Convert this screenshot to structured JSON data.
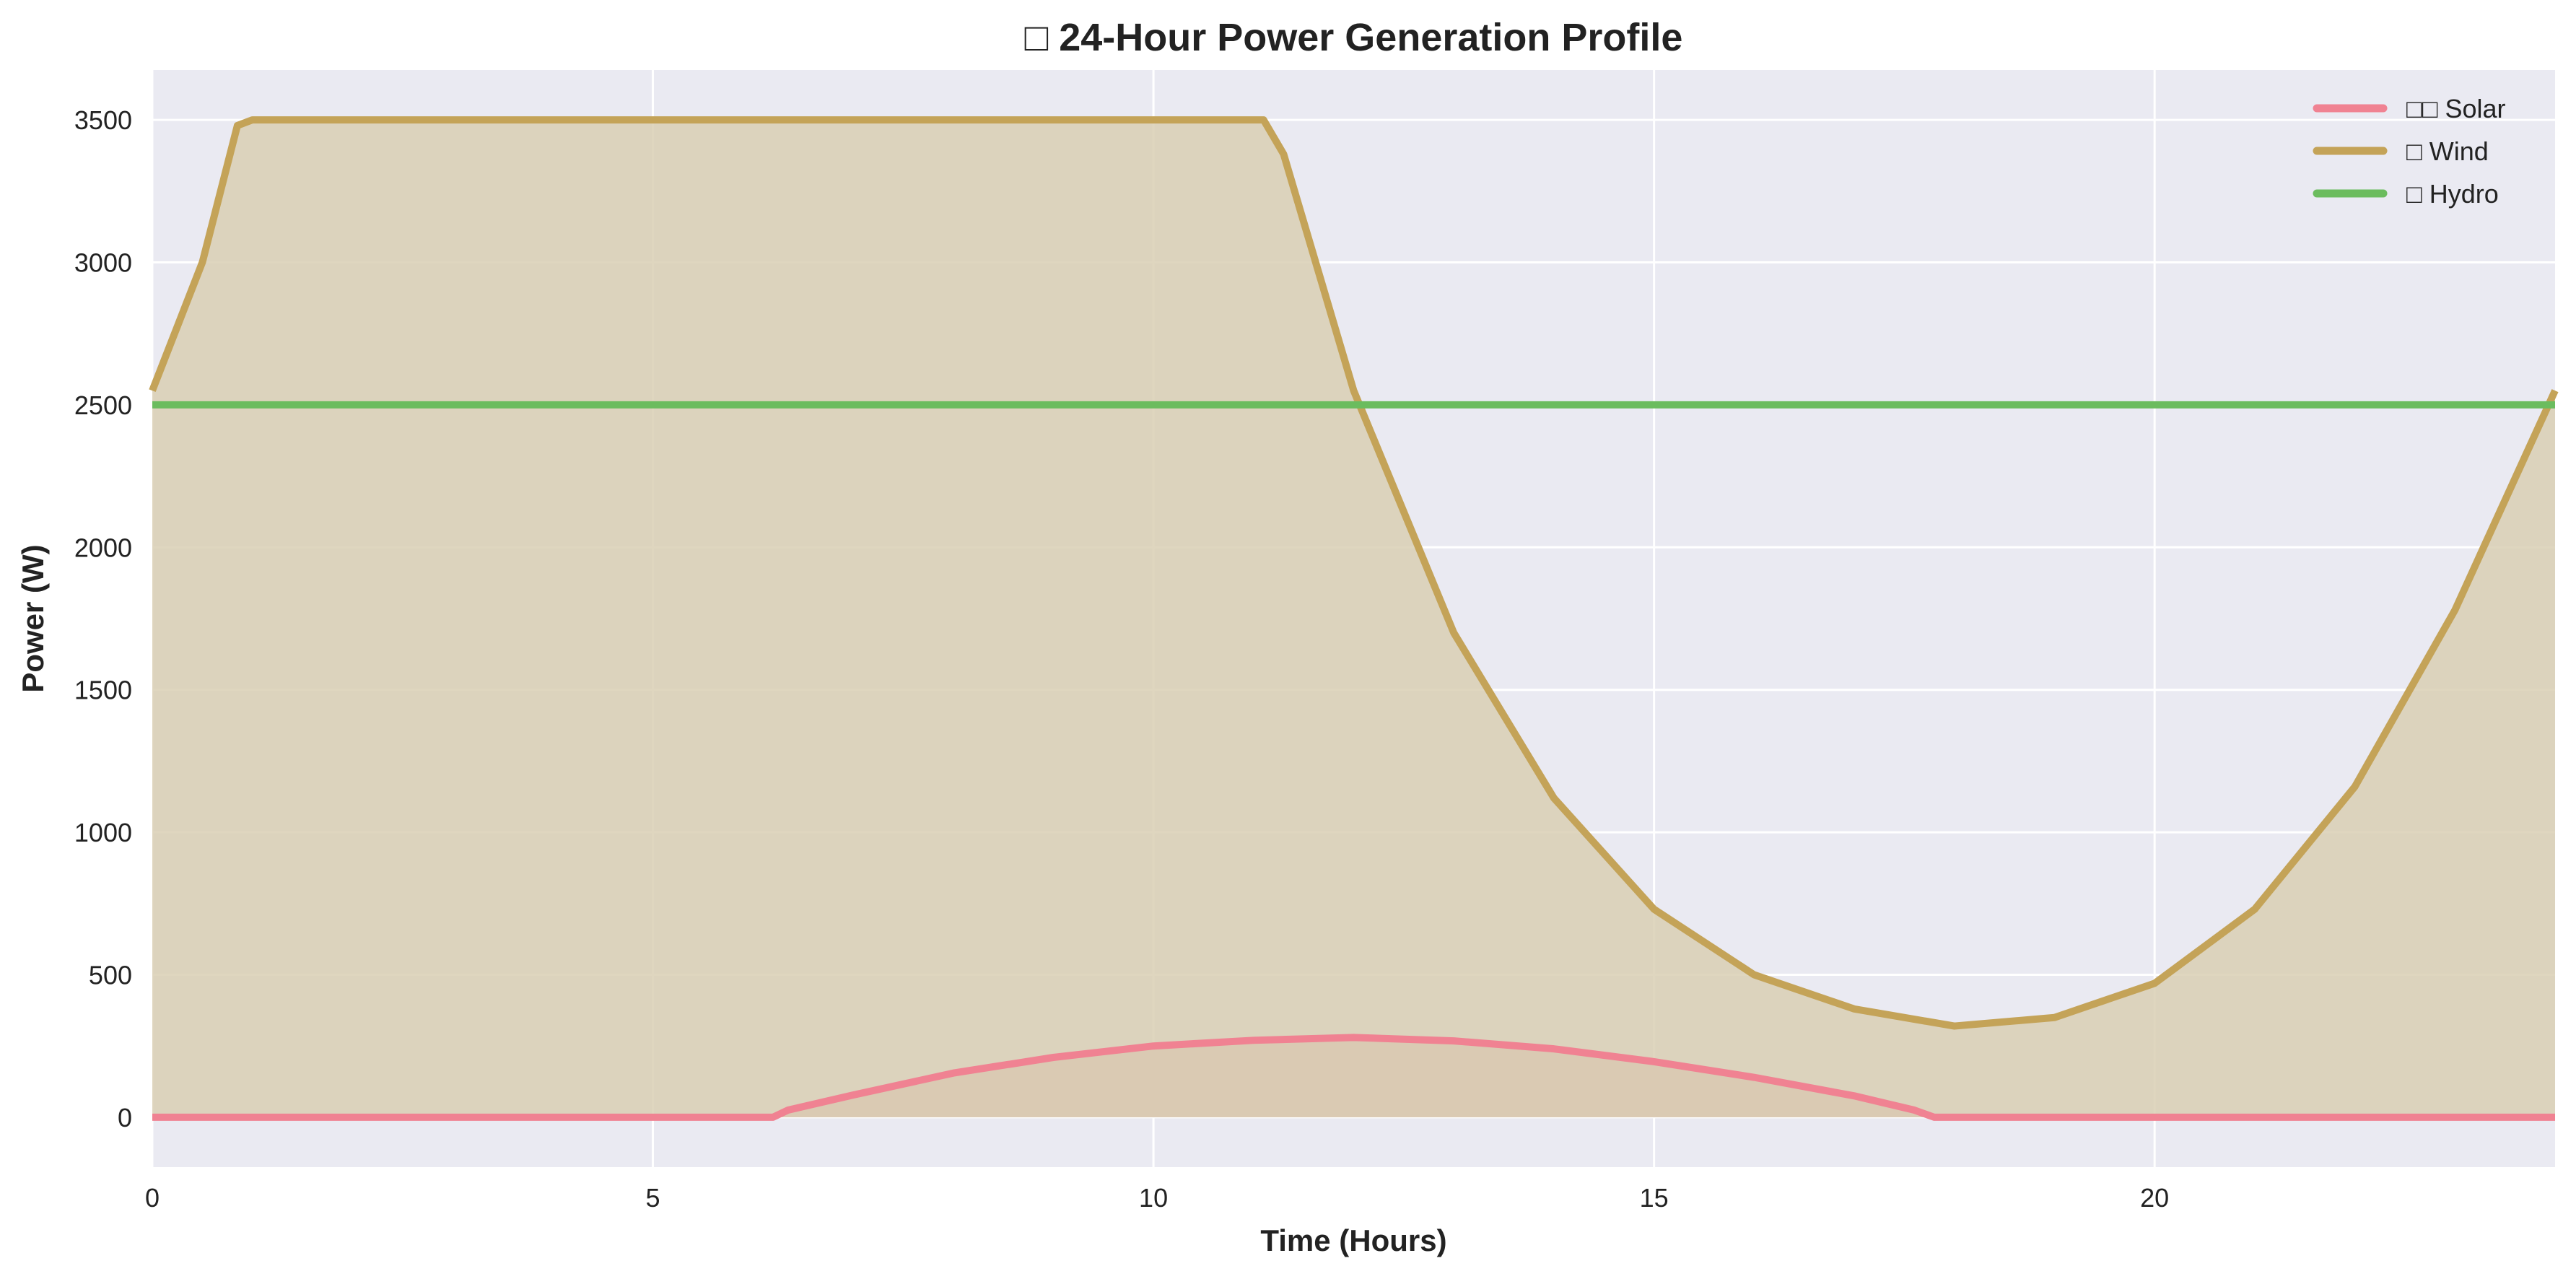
{
  "chart_data": {
    "type": "line",
    "title": "□ 24-Hour Power Generation Profile",
    "xlabel": "Time (Hours)",
    "ylabel": "Power (W)",
    "xlim": [
      0,
      24
    ],
    "ylim": [
      -175,
      3675
    ],
    "xticks": [
      0,
      5,
      10,
      15,
      20
    ],
    "yticks": [
      0,
      500,
      1000,
      1500,
      2000,
      2500,
      3000,
      3500
    ],
    "grid": true,
    "legend_position": "top-right",
    "filled": true,
    "series": [
      {
        "name": "□□ Solar",
        "color": "#f08292",
        "fill": "#d9a3a0",
        "points": [
          [
            0,
            0
          ],
          [
            6.2,
            0
          ],
          [
            6.35,
            25
          ],
          [
            7,
            78
          ],
          [
            8,
            155
          ],
          [
            9,
            210
          ],
          [
            10,
            250
          ],
          [
            11,
            270
          ],
          [
            12,
            280
          ],
          [
            13,
            268
          ],
          [
            14,
            240
          ],
          [
            15,
            195
          ],
          [
            16,
            140
          ],
          [
            17,
            75
          ],
          [
            17.6,
            25
          ],
          [
            17.8,
            0
          ],
          [
            24,
            0
          ]
        ]
      },
      {
        "name": "□ Wind",
        "color": "#c4a358",
        "fill": "#d9cfb4",
        "points": [
          [
            0,
            2550
          ],
          [
            0.5,
            3000
          ],
          [
            0.85,
            3480
          ],
          [
            1,
            3500
          ],
          [
            11.1,
            3500
          ],
          [
            11.3,
            3380
          ],
          [
            12,
            2550
          ],
          [
            13,
            1700
          ],
          [
            14,
            1120
          ],
          [
            15,
            730
          ],
          [
            16,
            500
          ],
          [
            17,
            380
          ],
          [
            18,
            320
          ],
          [
            19,
            350
          ],
          [
            20,
            470
          ],
          [
            21,
            730
          ],
          [
            22,
            1160
          ],
          [
            23,
            1780
          ],
          [
            24,
            2550
          ]
        ]
      },
      {
        "name": "□ Hydro",
        "color": "#6bbc5e",
        "fill": "none",
        "points": [
          [
            0,
            2500
          ],
          [
            24,
            2500
          ]
        ]
      }
    ]
  }
}
